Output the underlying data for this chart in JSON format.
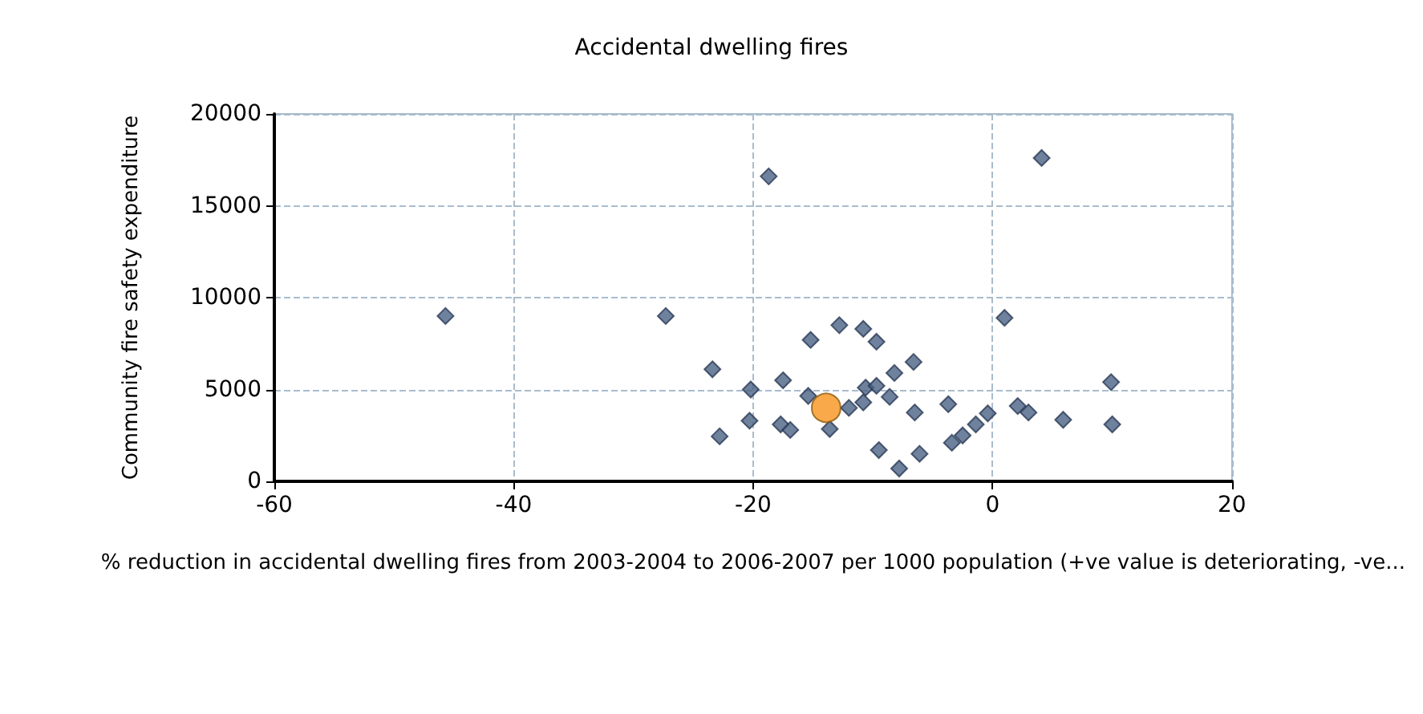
{
  "chart_data": {
    "type": "scatter",
    "title": "Accidental dwelling fires",
    "xlabel": "% reduction in accidental dwelling fires from 2003-2004 to 2006-2007 per 1000 population (+ve value is deteriorating, -ve...",
    "ylabel": "Community fire safety expenditure",
    "xlim": [
      -60,
      20
    ],
    "xticks": [
      -60,
      -40,
      -20,
      0,
      20
    ],
    "ylim": [
      0,
      20000
    ],
    "yticks": [
      0,
      5000,
      10000,
      15000,
      20000
    ],
    "grid": true,
    "line_style": "dashed",
    "marker": "diamond",
    "series": [
      {
        "color": "#4a6184",
        "x": [
          -45.7,
          -27.3,
          -18.7,
          4.1,
          1.0,
          2.1,
          3.0,
          5.9,
          9.9,
          10.0,
          -0.4,
          -1.4,
          -23.4,
          -22.8,
          -20.2,
          -20.3,
          -17.5,
          -17.7,
          -16.9,
          -15.2,
          -15.4,
          -13.6,
          -12.8,
          -10.8,
          -9.7,
          -12.0,
          -10.8,
          -10.6,
          -9.7,
          -8.2,
          -6.6,
          -8.6,
          -6.5,
          -9.5,
          -7.8,
          -6.1,
          -3.7,
          -3.4,
          -2.5
        ],
        "values": [
          9000,
          9000,
          16600,
          17600,
          8900,
          4100,
          3750,
          3350,
          5400,
          3100,
          3700,
          3100,
          6100,
          2450,
          5000,
          3300,
          5500,
          3100,
          2800,
          7700,
          4650,
          2850,
          8500,
          8300,
          7600,
          4000,
          4300,
          5100,
          5200,
          5900,
          6500,
          4600,
          3750,
          1700,
          700,
          1500,
          4200,
          2100,
          2500
        ]
      },
      {
        "color": "#f7941d",
        "marker": "circle",
        "x": [
          -13.9
        ],
        "values": [
          4000
        ]
      }
    ]
  }
}
